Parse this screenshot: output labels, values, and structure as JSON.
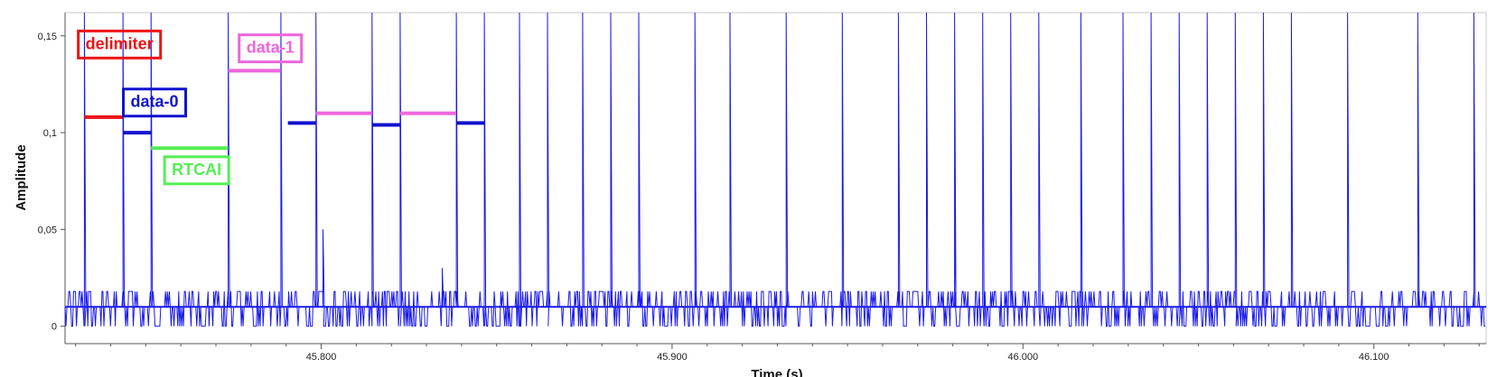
{
  "chart_data": {
    "type": "line",
    "title": "",
    "xlabel": "Time (s)",
    "ylabel": "Amplitude",
    "xlim": [
      45.727,
      46.132
    ],
    "ylim": [
      -0.009,
      0.162
    ],
    "x_ticks": [
      45.8,
      45.9,
      46.0,
      46.1
    ],
    "x_tick_labels": [
      "45.800",
      "45.900",
      "46.000",
      "46.100"
    ],
    "y_ticks": [
      0,
      0.05,
      0.1,
      0.15
    ],
    "y_tick_labels": [
      "0",
      "0,05",
      "0,1",
      "0,15"
    ],
    "grid": false,
    "legend": "none",
    "series_color": "#1a1aee",
    "noise": {
      "baseline": 0.01,
      "low": 0.0,
      "high": 0.018
    },
    "pulse_times": [
      45.7325,
      45.7435,
      45.7515,
      45.7735,
      45.7885,
      45.7985,
      45.8145,
      45.8225,
      45.8385,
      45.8465,
      45.8565,
      45.8645,
      45.8745,
      45.8825,
      45.8905,
      45.9065,
      45.9165,
      45.9325,
      45.9485,
      45.9645,
      45.9725,
      45.9805,
      45.9885,
      45.9965,
      46.0045,
      46.0165,
      46.0285,
      46.0365,
      46.0445,
      46.0525,
      46.0605,
      46.0685,
      46.0765,
      46.0925,
      46.1125,
      46.1285
    ],
    "short_pulse_times": [
      45.8005,
      45.8345,
      45.9805
    ],
    "short_pulse_values": [
      0.05,
      0.03,
      0.06
    ],
    "annotations": [
      {
        "label": "delimiter",
        "color": "#ee1111",
        "segments": [
          {
            "x0": 45.7325,
            "x1": 45.7435,
            "y": 0.108
          }
        ]
      },
      {
        "label": "data-0",
        "color": "#1111cc",
        "segments": [
          {
            "x0": 45.7435,
            "x1": 45.7515,
            "y": 0.1
          },
          {
            "x0": 45.7905,
            "x1": 45.7985,
            "y": 0.105
          },
          {
            "x0": 45.8145,
            "x1": 45.8225,
            "y": 0.104
          },
          {
            "x0": 45.8385,
            "x1": 45.8465,
            "y": 0.105
          }
        ]
      },
      {
        "label": "RTCAI",
        "color": "#55ee55",
        "segments": [
          {
            "x0": 45.7515,
            "x1": 45.7735,
            "y": 0.092
          }
        ]
      },
      {
        "label": "data-1",
        "color": "#ee66dd",
        "segments": [
          {
            "x0": 45.7735,
            "x1": 45.7885,
            "y": 0.132
          },
          {
            "x0": 45.7985,
            "x1": 45.8145,
            "y": 0.11
          },
          {
            "x0": 45.8225,
            "x1": 45.8385,
            "y": 0.11
          }
        ]
      }
    ]
  }
}
